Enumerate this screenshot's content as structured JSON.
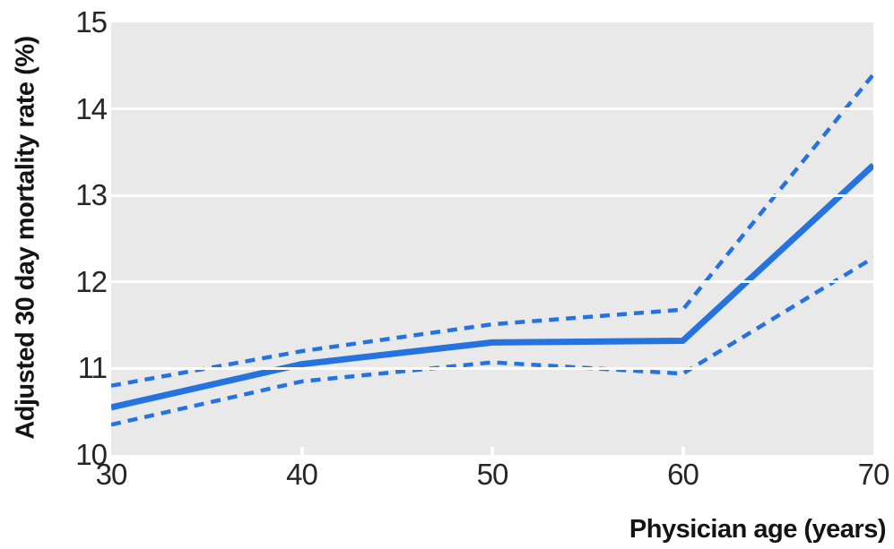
{
  "chart_data": {
    "type": "line",
    "title": "",
    "xlabel": "Physician age (years)",
    "ylabel": "Adjusted 30 day mortality rate (%)",
    "x": [
      30,
      40,
      50,
      60,
      70
    ],
    "series": [
      {
        "id": "estimate",
        "name": "Adjusted 30 day mortality rate (point estimate)",
        "style": "solid",
        "values": [
          10.55,
          11.05,
          11.3,
          11.32,
          13.35
        ]
      },
      {
        "id": "ci-upper",
        "name": "Upper 95% confidence limit",
        "style": "dashed",
        "values": [
          10.8,
          11.2,
          11.51,
          11.68,
          14.4
        ]
      },
      {
        "id": "ci-lower",
        "name": "Lower 95% confidence limit",
        "style": "dashed",
        "values": [
          10.35,
          10.85,
          11.07,
          10.94,
          12.28
        ]
      }
    ],
    "xlim": [
      30,
      70
    ],
    "ylim": [
      10,
      15
    ],
    "x_ticks": [
      30,
      40,
      50,
      60,
      70
    ],
    "y_ticks": [
      10,
      11,
      12,
      13,
      14,
      15
    ],
    "grid": "horizontal",
    "legend": "none",
    "colors": {
      "line": "#2573e0",
      "plot_bg": "#e9e9e9",
      "grid": "#ffffff",
      "tick_text": "#262626",
      "label_text": "#141414"
    }
  }
}
